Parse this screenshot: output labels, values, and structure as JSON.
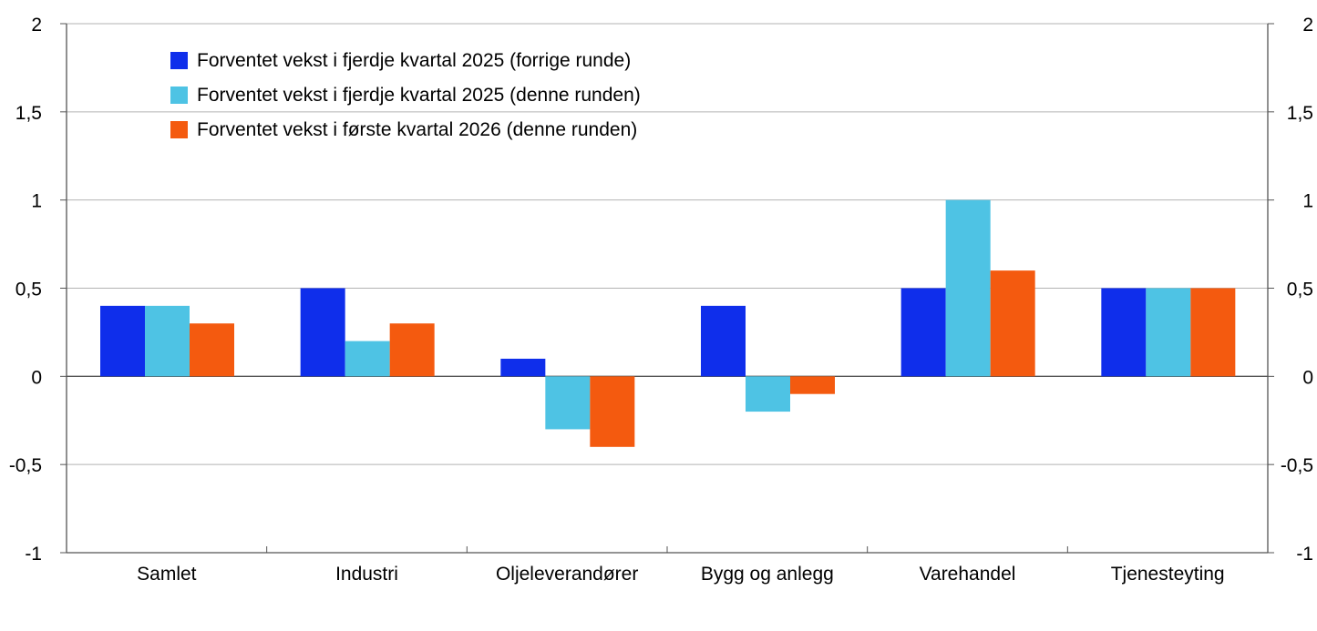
{
  "chart_data": {
    "type": "bar",
    "title": "",
    "xlabel": "",
    "ylabel": "",
    "ylim": [
      -1,
      2
    ],
    "yticks": [
      2,
      1.5,
      1,
      0.5,
      0,
      -0.5,
      -1
    ],
    "ytick_labels": [
      "2",
      "1,5",
      "1",
      "0,5",
      "0",
      "-0,5",
      "-1"
    ],
    "grid": true,
    "legend_position": "top-left",
    "categories": [
      "Samlet",
      "Industri",
      "Oljeleverandører",
      "Bygg og anlegg",
      "Varehandel",
      "Tjenesteyting"
    ],
    "series": [
      {
        "name": "Forventet vekst i fjerdje kvartal 2025 (forrige runde)",
        "color": "#0f2eeb",
        "values": [
          0.4,
          0.5,
          0.1,
          0.4,
          0.5,
          0.5
        ]
      },
      {
        "name": "Forventet vekst i fjerdje kvartal 2025 (denne runden)",
        "color": "#4ec3e4",
        "values": [
          0.4,
          0.2,
          -0.3,
          -0.2,
          1.0,
          0.5
        ]
      },
      {
        "name": "Forventet vekst i første kvartal 2026 (denne runden)",
        "color": "#f45a0f",
        "values": [
          0.3,
          0.3,
          -0.4,
          -0.1,
          0.6,
          0.5
        ]
      }
    ]
  }
}
